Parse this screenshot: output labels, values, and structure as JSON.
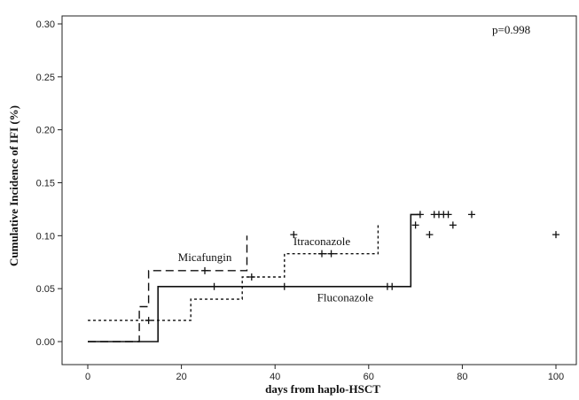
{
  "chart_data": {
    "type": "line",
    "title": "",
    "xlabel": "days from haplo-HSCT",
    "ylabel": "Cumulative Incidence of IFI (%)",
    "xlim": [
      0,
      100
    ],
    "ylim": [
      0,
      0.3
    ],
    "x_ticks": [
      0,
      20,
      40,
      60,
      80,
      100
    ],
    "y_ticks": [
      "0.00",
      "0.05",
      "0.10",
      "0.15",
      "0.20",
      "0.25",
      "0.30"
    ],
    "grid": false,
    "legend": "none",
    "annotation": "p=0.998",
    "series": [
      {
        "name": "Fluconazole",
        "style": "solid",
        "steps": [
          [
            0,
            0.0
          ],
          [
            15,
            0.0
          ],
          [
            15,
            0.052
          ],
          [
            69,
            0.052
          ],
          [
            69,
            0.12
          ],
          [
            71,
            0.12
          ]
        ],
        "censored": [
          [
            27,
            0.052
          ],
          [
            42,
            0.052
          ],
          [
            64,
            0.052
          ],
          [
            65,
            0.052
          ],
          [
            71,
            0.12
          ],
          [
            74,
            0.12
          ],
          [
            75,
            0.12
          ],
          [
            76,
            0.12
          ],
          [
            77,
            0.12
          ],
          [
            82,
            0.12
          ],
          [
            100,
            0.101
          ]
        ]
      },
      {
        "name": "Micafungin",
        "style": "dashed",
        "steps": [
          [
            0,
            0.0
          ],
          [
            11,
            0.0
          ],
          [
            11,
            0.033
          ],
          [
            13,
            0.033
          ],
          [
            13,
            0.067
          ],
          [
            34,
            0.067
          ],
          [
            34,
            0.1
          ]
        ],
        "censored": [
          [
            25,
            0.067
          ],
          [
            35,
            0.061
          ]
        ]
      },
      {
        "name": "Itraconazole",
        "style": "dotted",
        "steps": [
          [
            0,
            0.02
          ],
          [
            22,
            0.02
          ],
          [
            22,
            0.04
          ],
          [
            33,
            0.04
          ],
          [
            33,
            0.061
          ],
          [
            42,
            0.061
          ],
          [
            42,
            0.083
          ],
          [
            62,
            0.083
          ],
          [
            62,
            0.11
          ]
        ],
        "censored": [
          [
            13,
            0.02
          ],
          [
            44,
            0.101
          ],
          [
            50,
            0.083
          ],
          [
            52,
            0.083
          ],
          [
            70,
            0.11
          ],
          [
            73,
            0.101
          ],
          [
            78,
            0.11
          ]
        ]
      }
    ],
    "labels": [
      {
        "text": "Micafungin",
        "x": 25,
        "y": 0.076
      },
      {
        "text": "Itraconazole",
        "x": 50,
        "y": 0.091
      },
      {
        "text": "Fluconazole",
        "x": 55,
        "y": 0.038
      }
    ]
  }
}
